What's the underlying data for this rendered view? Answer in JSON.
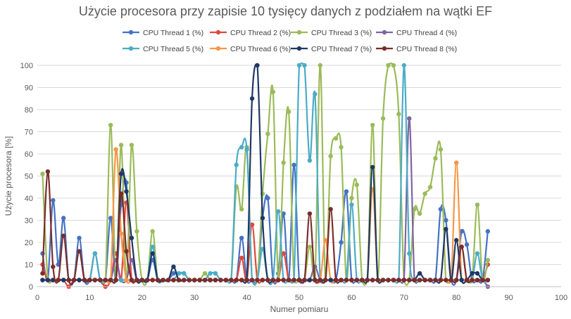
{
  "chart_data": {
    "type": "line",
    "title": "Użycie procesora przy zapisie 10 tysięcy danych z podziałem na wątki  EF",
    "xlabel": "Numer pomiaru",
    "ylabel": "Użycie procesora [%]",
    "xlim": [
      0,
      100
    ],
    "ylim": [
      0,
      100
    ],
    "xticks": [
      0,
      10,
      20,
      30,
      40,
      50,
      60,
      70,
      80,
      90,
      100
    ],
    "yticks": [
      0,
      10,
      20,
      30,
      40,
      50,
      60,
      70,
      80,
      90,
      100
    ],
    "grid": "horizontal",
    "smooth": true,
    "legend_position": "top",
    "series": [
      {
        "name": "CPU Thread 1 (%)",
        "color": "#4472C4",
        "values": [
          15,
          3,
          39,
          10,
          31,
          3,
          3,
          22,
          3,
          3,
          15,
          3,
          3,
          31,
          3,
          37,
          47,
          3,
          3,
          3,
          3,
          12,
          3,
          3,
          3,
          6,
          6,
          6,
          3,
          3,
          3,
          3,
          3,
          3,
          3,
          3,
          3,
          3,
          22,
          3,
          3,
          3,
          31,
          40,
          3,
          6,
          33,
          3,
          55,
          3,
          3,
          3,
          3,
          3,
          3,
          3,
          3,
          20,
          43,
          3,
          3,
          3,
          3,
          3,
          3,
          3,
          3,
          3,
          3,
          3,
          3,
          3,
          3,
          3,
          3,
          3,
          35,
          30,
          3,
          3,
          25,
          19,
          3,
          3,
          3,
          25
        ]
      },
      {
        "name": "CPU Thread 2 (%)",
        "color": "#E0483D",
        "values": [
          10,
          3,
          3,
          3,
          3,
          0,
          3,
          3,
          3,
          3,
          3,
          3,
          0,
          3,
          15,
          3,
          38,
          3,
          3,
          3,
          3,
          3,
          3,
          3,
          3,
          3,
          3,
          3,
          3,
          3,
          3,
          3,
          3,
          3,
          3,
          3,
          3,
          3,
          13,
          3,
          28,
          3,
          3,
          3,
          3,
          3,
          15,
          3,
          3,
          3,
          3,
          3,
          3,
          3,
          3,
          3,
          3,
          3,
          3,
          3,
          3,
          3,
          3,
          3,
          3,
          3,
          3,
          3,
          3,
          3,
          3,
          3,
          3,
          3,
          3,
          3,
          3,
          3,
          3,
          3,
          18,
          3,
          3,
          3,
          3,
          10
        ]
      },
      {
        "name": "CPU Thread 3 (%)",
        "color": "#9BBB59",
        "values": [
          51,
          3,
          3,
          3,
          3,
          3,
          3,
          3,
          3,
          3,
          3,
          3,
          3,
          73,
          3,
          64,
          3,
          64,
          25,
          3,
          3,
          25,
          3,
          3,
          3,
          3,
          3,
          3,
          3,
          3,
          3,
          6,
          3,
          3,
          3,
          3,
          3,
          45,
          35,
          63,
          3,
          3,
          42,
          69,
          88,
          3,
          56,
          79,
          3,
          3,
          3,
          18,
          3,
          100,
          3,
          59,
          67,
          63,
          3,
          40,
          46,
          3,
          3,
          73,
          3,
          76,
          100,
          100,
          78,
          3,
          3,
          35,
          33,
          42,
          45,
          58,
          62,
          3,
          3,
          3,
          3,
          3,
          3,
          37,
          3,
          12
        ]
      },
      {
        "name": "CPU Thread 4 (%)",
        "color": "#8064A2",
        "values": [
          3,
          3,
          3,
          3,
          3,
          3,
          3,
          3,
          3,
          3,
          3,
          3,
          3,
          3,
          12,
          3,
          3,
          12,
          3,
          3,
          3,
          3,
          3,
          3,
          3,
          3,
          3,
          3,
          3,
          3,
          3,
          3,
          3,
          3,
          3,
          3,
          3,
          3,
          3,
          3,
          3,
          3,
          3,
          3,
          3,
          3,
          3,
          3,
          3,
          3,
          3,
          3,
          9,
          3,
          3,
          3,
          3,
          3,
          3,
          3,
          3,
          3,
          3,
          3,
          3,
          3,
          3,
          3,
          3,
          3,
          76,
          3,
          3,
          3,
          3,
          3,
          3,
          3,
          3,
          3,
          3,
          3,
          3,
          3,
          3,
          0
        ]
      },
      {
        "name": "CPU Thread 5 (%)",
        "color": "#4BACC6",
        "values": [
          3,
          3,
          3,
          3,
          3,
          3,
          3,
          3,
          3,
          3,
          15,
          3,
          3,
          3,
          3,
          3,
          3,
          3,
          3,
          3,
          3,
          18,
          3,
          3,
          3,
          3,
          6,
          6,
          3,
          3,
          3,
          3,
          6,
          6,
          3,
          3,
          3,
          55,
          63,
          62,
          3,
          3,
          17,
          3,
          3,
          34,
          3,
          3,
          3,
          100,
          100,
          57,
          87,
          3,
          3,
          3,
          3,
          3,
          3,
          37,
          3,
          3,
          3,
          3,
          3,
          3,
          3,
          3,
          3,
          100,
          15,
          3,
          3,
          3,
          3,
          3,
          3,
          3,
          3,
          3,
          3,
          3,
          3,
          15,
          3,
          3
        ]
      },
      {
        "name": "CPU Thread 6 (%)",
        "color": "#F79646",
        "values": [
          3,
          3,
          3,
          3,
          3,
          3,
          3,
          3,
          3,
          3,
          3,
          3,
          3,
          3,
          62,
          24,
          3,
          3,
          3,
          3,
          3,
          3,
          3,
          3,
          3,
          3,
          3,
          3,
          3,
          3,
          3,
          3,
          3,
          3,
          3,
          3,
          3,
          3,
          3,
          3,
          3,
          3,
          3,
          3,
          3,
          3,
          3,
          3,
          3,
          3,
          3,
          3,
          3,
          3,
          21,
          3,
          3,
          3,
          3,
          3,
          3,
          3,
          3,
          44,
          3,
          3,
          3,
          3,
          3,
          3,
          3,
          3,
          3,
          3,
          3,
          3,
          3,
          3,
          3,
          56,
          3,
          3,
          3,
          3,
          3,
          3
        ]
      },
      {
        "name": "CPU Thread 7 (%)",
        "color": "#1F3864",
        "values": [
          3,
          3,
          3,
          3,
          3,
          3,
          3,
          3,
          3,
          3,
          3,
          3,
          3,
          3,
          3,
          51,
          43,
          22,
          3,
          3,
          3,
          15,
          3,
          3,
          3,
          9,
          3,
          3,
          3,
          3,
          3,
          3,
          3,
          3,
          3,
          3,
          3,
          3,
          3,
          3,
          85,
          100,
          31,
          3,
          3,
          3,
          3,
          3,
          3,
          3,
          3,
          3,
          3,
          3,
          3,
          3,
          3,
          3,
          3,
          3,
          3,
          3,
          3,
          54,
          3,
          3,
          3,
          3,
          3,
          3,
          3,
          3,
          6,
          3,
          3,
          3,
          3,
          26,
          3,
          21,
          3,
          3,
          6,
          6,
          3,
          3
        ]
      },
      {
        "name": "CPU Thread 8 (%)",
        "color": "#7B2C2C",
        "values": [
          6,
          52,
          9,
          3,
          23,
          3,
          3,
          16,
          3,
          3,
          3,
          3,
          3,
          3,
          3,
          42,
          16,
          3,
          3,
          3,
          3,
          3,
          3,
          3,
          3,
          3,
          3,
          3,
          3,
          3,
          3,
          3,
          3,
          3,
          3,
          3,
          3,
          3,
          3,
          3,
          3,
          3,
          3,
          3,
          3,
          3,
          3,
          3,
          3,
          3,
          3,
          33,
          3,
          3,
          3,
          35,
          3,
          3,
          3,
          3,
          3,
          3,
          3,
          3,
          3,
          3,
          3,
          3,
          3,
          3,
          3,
          3,
          3,
          3,
          3,
          3,
          3,
          3,
          3,
          3,
          18,
          3,
          3,
          3,
          3,
          3
        ]
      }
    ]
  }
}
